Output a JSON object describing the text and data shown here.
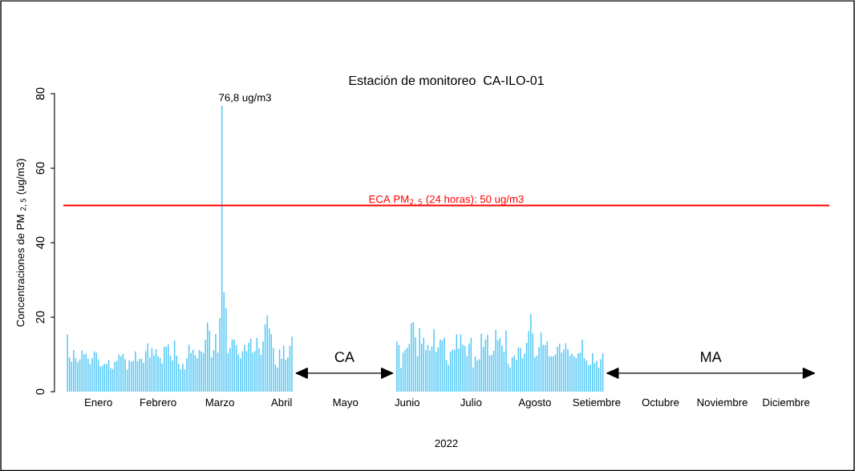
{
  "chart_data": {
    "type": "bar",
    "title": "Estación de monitoreo  CA-ILO-01",
    "xlabel": "2022",
    "ylabel": "Concentraciones de PM $_{2,5}$ (ug/m3)",
    "series": [
      {
        "color": "#55c8f5",
        "x": [
          "2022-01-01",
          "2022-01-02",
          "2022-01-03",
          "2022-01-04",
          "2022-01-05",
          "2022-01-06",
          "2022-01-07",
          "2022-01-08",
          "2022-01-09",
          "2022-01-10",
          "2022-01-11",
          "2022-01-12",
          "2022-01-13",
          "2022-01-14",
          "2022-01-15",
          "2022-01-16",
          "2022-01-17",
          "2022-01-18",
          "2022-01-19",
          "2022-01-20",
          "2022-01-21",
          "2022-01-22",
          "2022-01-23",
          "2022-01-24",
          "2022-01-25",
          "2022-01-26",
          "2022-01-27",
          "2022-01-28",
          "2022-01-29",
          "2022-01-30",
          "2022-01-31",
          "2022-02-01",
          "2022-02-02",
          "2022-02-03",
          "2022-02-04",
          "2022-02-05",
          "2022-02-06",
          "2022-02-07",
          "2022-02-08",
          "2022-02-09",
          "2022-02-10",
          "2022-02-11",
          "2022-02-12",
          "2022-02-13",
          "2022-02-14",
          "2022-02-15",
          "2022-02-16",
          "2022-02-17",
          "2022-02-18",
          "2022-02-19",
          "2022-02-20",
          "2022-02-21",
          "2022-02-22",
          "2022-02-23",
          "2022-02-24",
          "2022-02-25",
          "2022-02-26",
          "2022-02-27",
          "2022-02-28",
          "2022-03-01",
          "2022-03-02",
          "2022-03-03",
          "2022-03-04",
          "2022-03-05",
          "2022-03-06",
          "2022-03-07",
          "2022-03-08",
          "2022-03-09",
          "2022-03-10",
          "2022-03-11",
          "2022-03-12",
          "2022-03-13",
          "2022-03-14",
          "2022-03-15",
          "2022-03-16",
          "2022-03-17",
          "2022-03-18",
          "2022-03-19",
          "2022-03-20",
          "2022-03-21",
          "2022-03-22",
          "2022-03-23",
          "2022-03-24",
          "2022-03-25",
          "2022-03-26",
          "2022-03-27",
          "2022-03-28",
          "2022-03-29",
          "2022-03-30",
          "2022-03-31",
          "2022-04-01",
          "2022-04-02",
          "2022-04-03",
          "2022-04-04",
          "2022-04-05",
          "2022-04-06",
          "2022-04-07",
          "2022-04-08",
          "2022-04-09",
          "2022-04-10",
          "2022-04-11",
          "2022-04-12",
          "2022-04-13",
          "2022-04-14",
          "2022-04-15",
          "2022-04-16",
          "2022-04-17",
          "2022-04-18",
          "2022-04-19",
          "2022-04-20",
          "2022-06-10",
          "2022-06-11",
          "2022-06-12",
          "2022-06-13",
          "2022-06-14",
          "2022-06-15",
          "2022-06-16",
          "2022-06-17",
          "2022-06-18",
          "2022-06-19",
          "2022-06-20",
          "2022-06-21",
          "2022-06-22",
          "2022-06-23",
          "2022-06-24",
          "2022-06-25",
          "2022-06-26",
          "2022-06-27",
          "2022-06-28",
          "2022-06-29",
          "2022-06-30",
          "2022-07-01",
          "2022-07-02",
          "2022-07-03",
          "2022-07-04",
          "2022-07-05",
          "2022-07-06",
          "2022-07-07",
          "2022-07-08",
          "2022-07-09",
          "2022-07-10",
          "2022-07-11",
          "2022-07-12",
          "2022-07-13",
          "2022-07-14",
          "2022-07-15",
          "2022-07-16",
          "2022-07-17",
          "2022-07-18",
          "2022-07-19",
          "2022-07-20",
          "2022-07-21",
          "2022-07-22",
          "2022-07-23",
          "2022-07-24",
          "2022-07-25",
          "2022-07-26",
          "2022-07-27",
          "2022-07-28",
          "2022-07-29",
          "2022-07-30",
          "2022-07-31",
          "2022-08-01",
          "2022-08-02",
          "2022-08-03",
          "2022-08-04",
          "2022-08-05",
          "2022-08-06",
          "2022-08-07",
          "2022-08-08",
          "2022-08-09",
          "2022-08-10",
          "2022-08-11",
          "2022-08-12",
          "2022-08-13",
          "2022-08-14",
          "2022-08-15",
          "2022-08-16",
          "2022-08-17",
          "2022-08-18",
          "2022-08-19",
          "2022-08-20",
          "2022-08-21",
          "2022-08-22",
          "2022-08-23",
          "2022-08-24",
          "2022-08-25",
          "2022-08-26",
          "2022-08-27",
          "2022-08-28",
          "2022-08-29",
          "2022-08-30",
          "2022-08-31",
          "2022-09-01",
          "2022-09-02",
          "2022-09-03",
          "2022-09-04",
          "2022-09-05",
          "2022-09-06",
          "2022-09-07",
          "2022-09-08",
          "2022-09-09",
          "2022-09-10",
          "2022-09-11",
          "2022-09-12",
          "2022-09-13",
          "2022-09-14",
          "2022-09-15",
          "2022-09-16",
          "2022-09-17",
          "2022-09-18"
        ],
        "values": [
          15.3,
          9.2,
          8.0,
          11.2,
          9.0,
          7.9,
          8.7,
          11.1,
          10.0,
          10.2,
          8.8,
          7.4,
          9.0,
          10.8,
          10.5,
          8.7,
          6.8,
          7.0,
          7.5,
          7.4,
          8.5,
          6.3,
          6.1,
          8.0,
          8.3,
          10.0,
          9.5,
          10.2,
          8.7,
          5.9,
          8.4,
          8.1,
          8.3,
          10.8,
          8.2,
          8.8,
          8.8,
          7.8,
          10.9,
          13.0,
          9.2,
          11.7,
          9.8,
          11.4,
          9.5,
          9.0,
          7.6,
          12.1,
          12.1,
          12.7,
          9.7,
          8.4,
          13.7,
          9.7,
          7.5,
          6.0,
          7.5,
          6.0,
          9.0,
          12.6,
          10.4,
          11.3,
          9.8,
          9.0,
          11.2,
          10.8,
          10.4,
          14.0,
          18.6,
          16.4,
          9.2,
          11.2,
          15.5,
          10.5,
          19.8,
          76.8,
          26.7,
          22.4,
          10.4,
          11.8,
          14.0,
          14.0,
          12.5,
          10.0,
          9.0,
          10.8,
          12.6,
          10.9,
          13.1,
          14.2,
          10.5,
          10.9,
          14.4,
          11.6,
          9.9,
          13.5,
          18.1,
          20.5,
          17.0,
          15.4,
          11.7,
          7.3,
          6.5,
          11.4,
          8.8,
          12.3,
          8.6,
          9.2,
          12.3,
          14.8,
          13.5,
          12.5,
          6.4,
          10.5,
          11.3,
          11.8,
          12.8,
          18.4,
          18.7,
          14.6,
          9.5,
          17.1,
          12.8,
          14.5,
          11.2,
          12.6,
          11.0,
          12.1,
          16.8,
          10.7,
          11.9,
          14.0,
          13.8,
          14.5,
          8.5,
          7.2,
          10.7,
          11.3,
          11.3,
          15.4,
          11.5,
          15.4,
          12.6,
          12.3,
          9.5,
          12.9,
          14.5,
          6.5,
          9.5,
          8.4,
          8.7,
          15.6,
          12.0,
          14.0,
          15.2,
          9.7,
          9.9,
          11.0,
          16.6,
          13.8,
          14.4,
          12.5,
          10.8,
          16.4,
          7.5,
          6.5,
          9.2,
          9.8,
          8.6,
          11.9,
          11.7,
          9.0,
          10.3,
          13.1,
          16.3,
          20.9,
          15.6,
          9.2,
          9.7,
          12.0,
          15.9,
          12.6,
          12.5,
          13.5,
          9.5,
          9.5,
          9.5,
          10.0,
          12.1,
          12.9,
          10.5,
          11.3,
          13.0,
          11.4,
          9.7,
          10.2,
          9.5,
          9.0,
          10.3,
          10.5,
          14.0,
          9.0,
          8.4,
          7.1,
          7.3,
          10.3,
          7.7,
          8.2,
          6.4,
          8.7,
          10.3
        ]
      }
    ],
    "xlim": [
      "2021-12-30",
      "2023-01-06"
    ],
    "xticks": [
      {
        "value": "2022-01-16",
        "label": "Enero"
      },
      {
        "value": "2022-02-14",
        "label": "Febrero"
      },
      {
        "value": "2022-03-16",
        "label": "Marzo"
      },
      {
        "value": "2022-04-15",
        "label": "Abril"
      },
      {
        "value": "2022-05-16",
        "label": "Mayo"
      },
      {
        "value": "2022-06-15",
        "label": "Junio"
      },
      {
        "value": "2022-07-16",
        "label": "Julio"
      },
      {
        "value": "2022-08-16",
        "label": "Agosto"
      },
      {
        "value": "2022-09-15",
        "label": "Setiembre"
      },
      {
        "value": "2022-10-16",
        "label": "Octubre"
      },
      {
        "value": "2022-11-15",
        "label": "Noviembre"
      },
      {
        "value": "2022-12-16",
        "label": "Diciembre"
      }
    ],
    "ylim": [
      0,
      80
    ],
    "yticks": [
      0,
      20,
      40,
      60,
      80
    ],
    "grid": false,
    "ref_lines": [
      {
        "axis": "y",
        "value": 50,
        "label": "ECA PM$_{2,5}$ (24 horas): 50 ug/m3",
        "color": "#ff0000",
        "line_style": "solid"
      }
    ],
    "annotations": [
      {
        "text": "76,8 ug/m3",
        "x": "2022-03-17",
        "y": 76.8
      },
      "CA",
      "MA"
    ]
  }
}
